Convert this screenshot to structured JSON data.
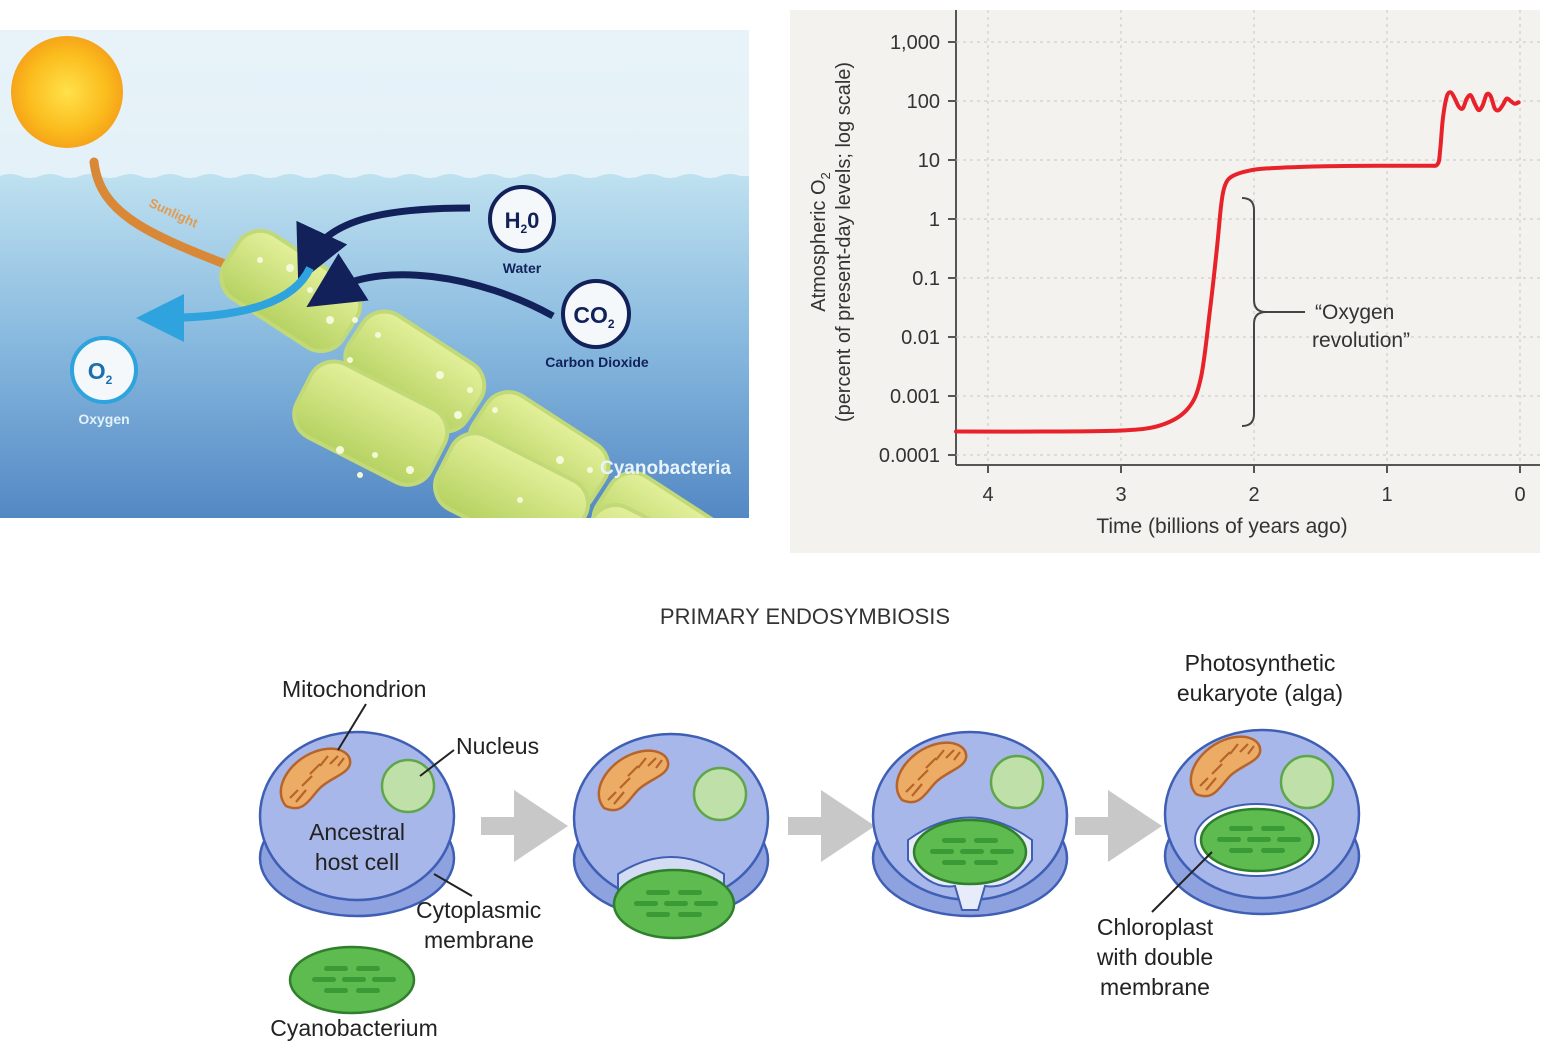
{
  "photosynthesis": {
    "sunlight_label": "Sunlight",
    "water_formula": "H",
    "water_sub": "2",
    "water_formula_tail": "0",
    "water_label": "Water",
    "co2_formula": "CO",
    "co2_sub": "2",
    "co2_label": "Carbon Dioxide",
    "o2_formula": "O",
    "o2_sub": "2",
    "o2_label": "Oxygen",
    "organism_label": "Cyanobacteria"
  },
  "chart_data": {
    "type": "line",
    "ylabel_line1": "Atmospheric O",
    "ylabel_sub": "2",
    "ylabel_line2": "(percent of present-day levels; log scale)",
    "xlabel": "Time (billions of years ago)",
    "x_ticks": [
      "4",
      "3",
      "2",
      "1",
      "0"
    ],
    "y_ticks": [
      "0.0001",
      "0.001",
      "0.01",
      "0.1",
      "1",
      "10",
      "100",
      "1,000"
    ],
    "xlim": [
      4.25,
      0
    ],
    "ylim_log10": [
      -4,
      3
    ],
    "y_scale": "log",
    "series_color": "#e8222a",
    "annotation": {
      "line1": "“Oxygen",
      "line2": "revolution”"
    },
    "x": [
      4.25,
      3.6,
      3.0,
      2.7,
      2.5,
      2.4,
      2.33,
      2.28,
      2.25,
      2.23,
      2.2,
      2.15,
      2.05,
      1.9,
      1.5,
      1.0,
      0.7,
      0.62,
      0.6,
      0.58,
      0.55,
      0.52,
      0.49,
      0.46,
      0.43,
      0.4,
      0.37,
      0.34,
      0.31,
      0.28,
      0.25,
      0.22,
      0.19,
      0.16,
      0.13,
      0.1,
      0.07,
      0.04,
      0.01
    ],
    "y": [
      0.00025,
      0.00025,
      0.00026,
      0.00032,
      0.0006,
      0.002,
      0.03,
      0.3,
      1.5,
      3,
      4.5,
      5.5,
      6.5,
      7.2,
      7.8,
      8,
      8,
      8.5,
      15,
      50,
      120,
      140,
      110,
      80,
      75,
      110,
      125,
      90,
      70,
      85,
      130,
      120,
      75,
      70,
      85,
      110,
      100,
      90,
      95
    ]
  },
  "endosymbiosis": {
    "title": "PRIMARY ENDOSYMBIOSIS",
    "mitochondrion_label": "Mitochondrion",
    "nucleus_label": "Nucleus",
    "host_label_1": "Ancestral",
    "host_label_2": "host cell",
    "membrane_label_1": "Cytoplasmic",
    "membrane_label_2": "membrane",
    "cyano_label": "Cyanobacterium",
    "alga_label_1": "Photosynthetic",
    "alga_label_2": "eukaryote (alga)",
    "chloro_label_1": "Chloroplast",
    "chloro_label_2": "with double",
    "chloro_label_3": "membrane"
  },
  "colors": {
    "water_top": "#c9e6f2",
    "water_deep": "#5d93c9",
    "cell_fill": "#9fb2e8",
    "cell_stroke": "#3f5fb5",
    "chloroplast": "#5dbb4f",
    "mitochondrion": "#e39a4e",
    "arrow_gray": "#c8c8c8"
  }
}
